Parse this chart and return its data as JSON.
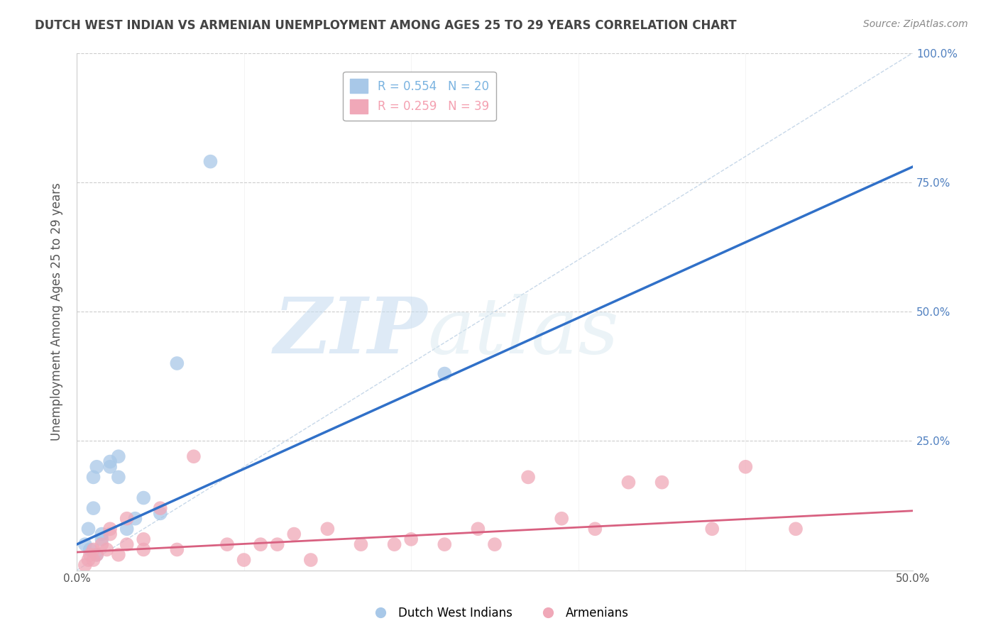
{
  "title": "DUTCH WEST INDIAN VS ARMENIAN UNEMPLOYMENT AMONG AGES 25 TO 29 YEARS CORRELATION CHART",
  "source": "Source: ZipAtlas.com",
  "ylabel": "Unemployment Among Ages 25 to 29 years",
  "xlim": [
    0.0,
    0.5
  ],
  "ylim": [
    0.0,
    1.0
  ],
  "xticks": [
    0.0,
    0.1,
    0.2,
    0.3,
    0.4,
    0.5
  ],
  "xticklabels": [
    "0.0%",
    "",
    "",
    "",
    "",
    "50.0%"
  ],
  "yticks": [
    0.0,
    0.25,
    0.5,
    0.75,
    1.0
  ],
  "ytick_right_labels": [
    "",
    "25.0%",
    "50.0%",
    "75.0%",
    "100.0%"
  ],
  "legend_entries": [
    {
      "label": "R = 0.554   N = 20",
      "color": "#7ab3e0"
    },
    {
      "label": "R = 0.259   N = 39",
      "color": "#f4a0b0"
    }
  ],
  "blue_scatter": [
    [
      0.005,
      0.05
    ],
    [
      0.007,
      0.08
    ],
    [
      0.008,
      0.04
    ],
    [
      0.01,
      0.12
    ],
    [
      0.01,
      0.18
    ],
    [
      0.012,
      0.2
    ],
    [
      0.012,
      0.03
    ],
    [
      0.015,
      0.06
    ],
    [
      0.015,
      0.07
    ],
    [
      0.02,
      0.2
    ],
    [
      0.02,
      0.21
    ],
    [
      0.025,
      0.18
    ],
    [
      0.025,
      0.22
    ],
    [
      0.03,
      0.08
    ],
    [
      0.035,
      0.1
    ],
    [
      0.04,
      0.14
    ],
    [
      0.05,
      0.11
    ],
    [
      0.06,
      0.4
    ],
    [
      0.08,
      0.79
    ],
    [
      0.22,
      0.38
    ]
  ],
  "pink_scatter": [
    [
      0.005,
      0.01
    ],
    [
      0.007,
      0.02
    ],
    [
      0.008,
      0.03
    ],
    [
      0.01,
      0.02
    ],
    [
      0.01,
      0.04
    ],
    [
      0.012,
      0.03
    ],
    [
      0.015,
      0.05
    ],
    [
      0.018,
      0.04
    ],
    [
      0.02,
      0.07
    ],
    [
      0.02,
      0.08
    ],
    [
      0.025,
      0.03
    ],
    [
      0.03,
      0.05
    ],
    [
      0.03,
      0.1
    ],
    [
      0.04,
      0.04
    ],
    [
      0.04,
      0.06
    ],
    [
      0.05,
      0.12
    ],
    [
      0.06,
      0.04
    ],
    [
      0.07,
      0.22
    ],
    [
      0.09,
      0.05
    ],
    [
      0.1,
      0.02
    ],
    [
      0.11,
      0.05
    ],
    [
      0.12,
      0.05
    ],
    [
      0.13,
      0.07
    ],
    [
      0.14,
      0.02
    ],
    [
      0.15,
      0.08
    ],
    [
      0.17,
      0.05
    ],
    [
      0.19,
      0.05
    ],
    [
      0.2,
      0.06
    ],
    [
      0.22,
      0.05
    ],
    [
      0.24,
      0.08
    ],
    [
      0.25,
      0.05
    ],
    [
      0.27,
      0.18
    ],
    [
      0.29,
      0.1
    ],
    [
      0.31,
      0.08
    ],
    [
      0.33,
      0.17
    ],
    [
      0.35,
      0.17
    ],
    [
      0.38,
      0.08
    ],
    [
      0.4,
      0.2
    ],
    [
      0.43,
      0.08
    ]
  ],
  "blue_line": [
    [
      0.0,
      0.05
    ],
    [
      0.5,
      0.78
    ]
  ],
  "pink_line": [
    [
      0.0,
      0.035
    ],
    [
      0.5,
      0.115
    ]
  ],
  "diagonal_line": [
    [
      0.0,
      0.0
    ],
    [
      0.5,
      1.0
    ]
  ],
  "watermark_zip": "ZIP",
  "watermark_atlas": "atlas",
  "background_color": "#ffffff",
  "grid_color": "#cccccc",
  "title_color": "#444444",
  "blue_color": "#a8c8e8",
  "pink_color": "#f0a8b8",
  "blue_line_color": "#3070c8",
  "pink_line_color": "#d86080",
  "diagonal_color": "#b0c8e0"
}
